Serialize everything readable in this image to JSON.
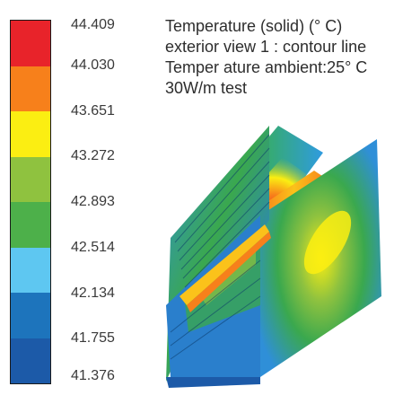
{
  "legend": {
    "colors": [
      "#e8232a",
      "#f7801b",
      "#fbee12",
      "#8fc23f",
      "#4db04a",
      "#5ec7f1",
      "#1d74bc",
      "#1c5aa8"
    ],
    "ticks": [
      "44.409",
      "44.030",
      "43.651",
      "43.272",
      "42.893",
      "42.514",
      "42.134",
      "41.755",
      "41.376"
    ]
  },
  "caption": {
    "line1": "Temperature (solid) (° C)",
    "line2": "exterior view 1 : contour line",
    "line3": "Temper ature ambient:25° C",
    "line4": "30W/m test"
  }
}
